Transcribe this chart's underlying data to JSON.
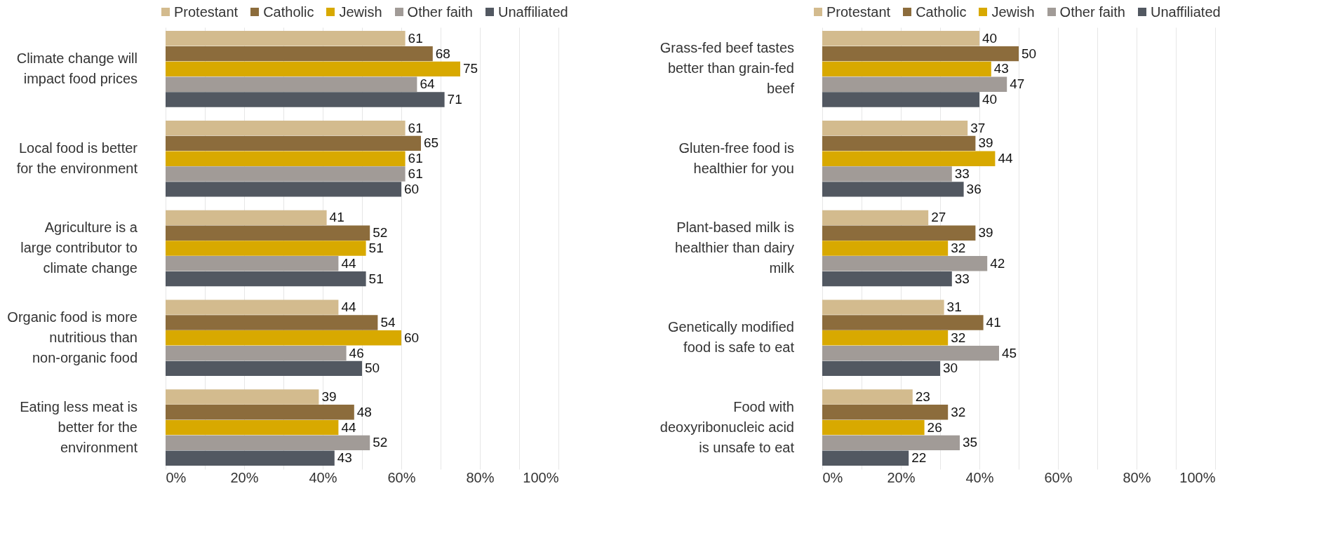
{
  "chart_data": [
    {
      "type": "bar",
      "orientation": "horizontal",
      "categories": [
        "Climate change will impact food prices",
        "Local food is better for the environment",
        "Agriculture is a large contributor to climate change",
        "Organic food is more nutritious than non-organic food",
        "Eating less meat is better for the environment"
      ],
      "series": [
        {
          "name": "Protestant",
          "color": "#d3bb8e",
          "values": [
            61,
            61,
            41,
            44,
            39
          ]
        },
        {
          "name": "Catholic",
          "color": "#8c6c3c",
          "values": [
            68,
            65,
            52,
            54,
            48
          ]
        },
        {
          "name": "Jewish",
          "color": "#d8a900",
          "values": [
            75,
            61,
            51,
            60,
            44
          ]
        },
        {
          "name": "Other faith",
          "color": "#a19b97",
          "values": [
            64,
            61,
            44,
            46,
            52
          ]
        },
        {
          "name": "Unaffiliated",
          "color": "#525861",
          "values": [
            71,
            60,
            51,
            50,
            43
          ]
        }
      ],
      "xlim": [
        0,
        100
      ],
      "xticks": [
        {
          "value": 0,
          "label": "0%"
        },
        {
          "value": 10,
          "label": null
        },
        {
          "value": 20,
          "label": "20%"
        },
        {
          "value": 30,
          "label": null
        },
        {
          "value": 40,
          "label": "40%"
        },
        {
          "value": 50,
          "label": null
        },
        {
          "value": 60,
          "label": "60%"
        },
        {
          "value": 70,
          "label": null
        },
        {
          "value": 80,
          "label": "80%"
        },
        {
          "value": 90,
          "label": null
        },
        {
          "value": 100,
          "label": "100%"
        }
      ],
      "grid": "x",
      "legend": "top",
      "data_labels": true
    },
    {
      "type": "bar",
      "orientation": "horizontal",
      "categories": [
        "Grass-fed beef tastes better than grain-fed beef",
        "Gluten-free food is healthier for you",
        "Plant-based milk is healthier than dairy milk",
        "Genetically modified food is safe to eat",
        "Food with deoxyribonucleic acid is unsafe to eat"
      ],
      "series": [
        {
          "name": "Protestant",
          "color": "#d3bb8e",
          "values": [
            40,
            37,
            27,
            31,
            23
          ]
        },
        {
          "name": "Catholic",
          "color": "#8c6c3c",
          "values": [
            50,
            39,
            39,
            41,
            32
          ]
        },
        {
          "name": "Jewish",
          "color": "#d8a900",
          "values": [
            43,
            44,
            32,
            32,
            26
          ]
        },
        {
          "name": "Other faith",
          "color": "#a19b97",
          "values": [
            47,
            33,
            42,
            45,
            35
          ]
        },
        {
          "name": "Unaffiliated",
          "color": "#525861",
          "values": [
            40,
            36,
            33,
            30,
            22
          ]
        }
      ],
      "xlim": [
        0,
        100
      ],
      "xticks": [
        {
          "value": 0,
          "label": "0%"
        },
        {
          "value": 10,
          "label": null
        },
        {
          "value": 20,
          "label": "20%"
        },
        {
          "value": 30,
          "label": null
        },
        {
          "value": 40,
          "label": "40%"
        },
        {
          "value": 50,
          "label": null
        },
        {
          "value": 60,
          "label": "60%"
        },
        {
          "value": 70,
          "label": null
        },
        {
          "value": 80,
          "label": "80%"
        },
        {
          "value": 90,
          "label": null
        },
        {
          "value": 100,
          "label": "100%"
        }
      ],
      "grid": "x",
      "legend": "top",
      "data_labels": true
    }
  ]
}
